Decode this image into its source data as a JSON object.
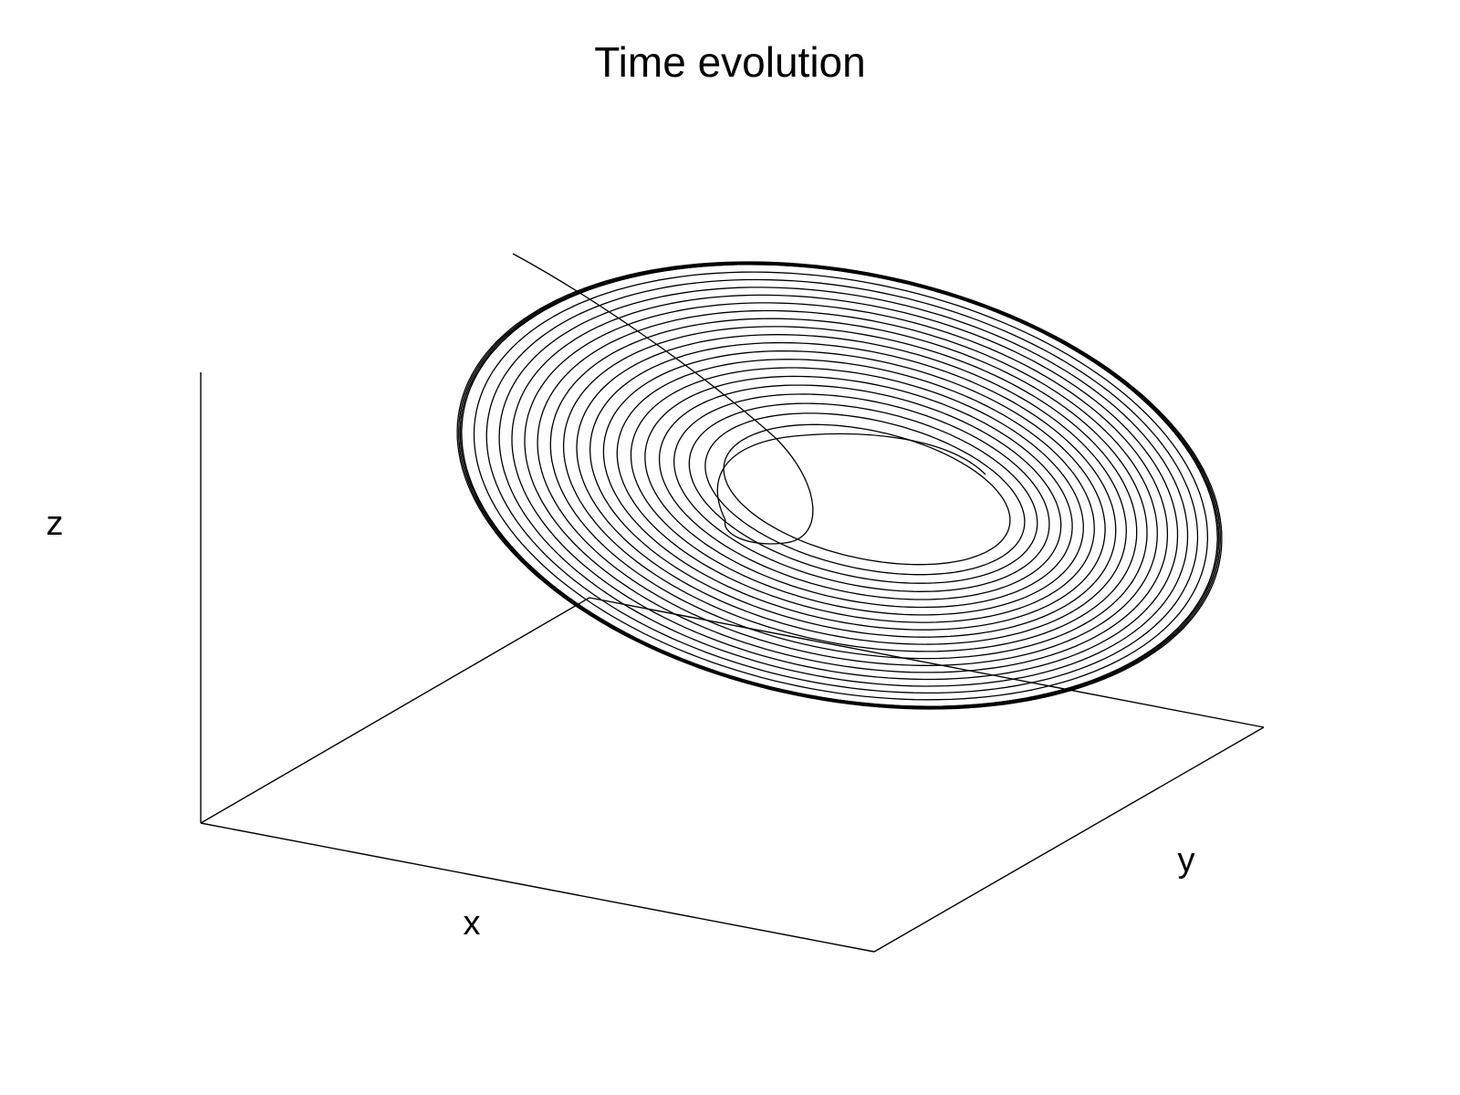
{
  "chart_data": {
    "type": "line",
    "projection": "3d",
    "title": "Time evolution",
    "xlabel": "x",
    "ylabel": "y",
    "zlabel": "z",
    "tick_labels": "none",
    "grid": false,
    "legend": "none",
    "line_color": "#000000",
    "series": [
      {
        "description_of_shape": "spiral trajectory converging from an outer limit cycle inward toward a small inner loop, starting from a point high above and to the left",
        "trajectory_segments": "entry curve, inner loop, outward spiral rings, outer limit cycle"
      }
    ]
  }
}
